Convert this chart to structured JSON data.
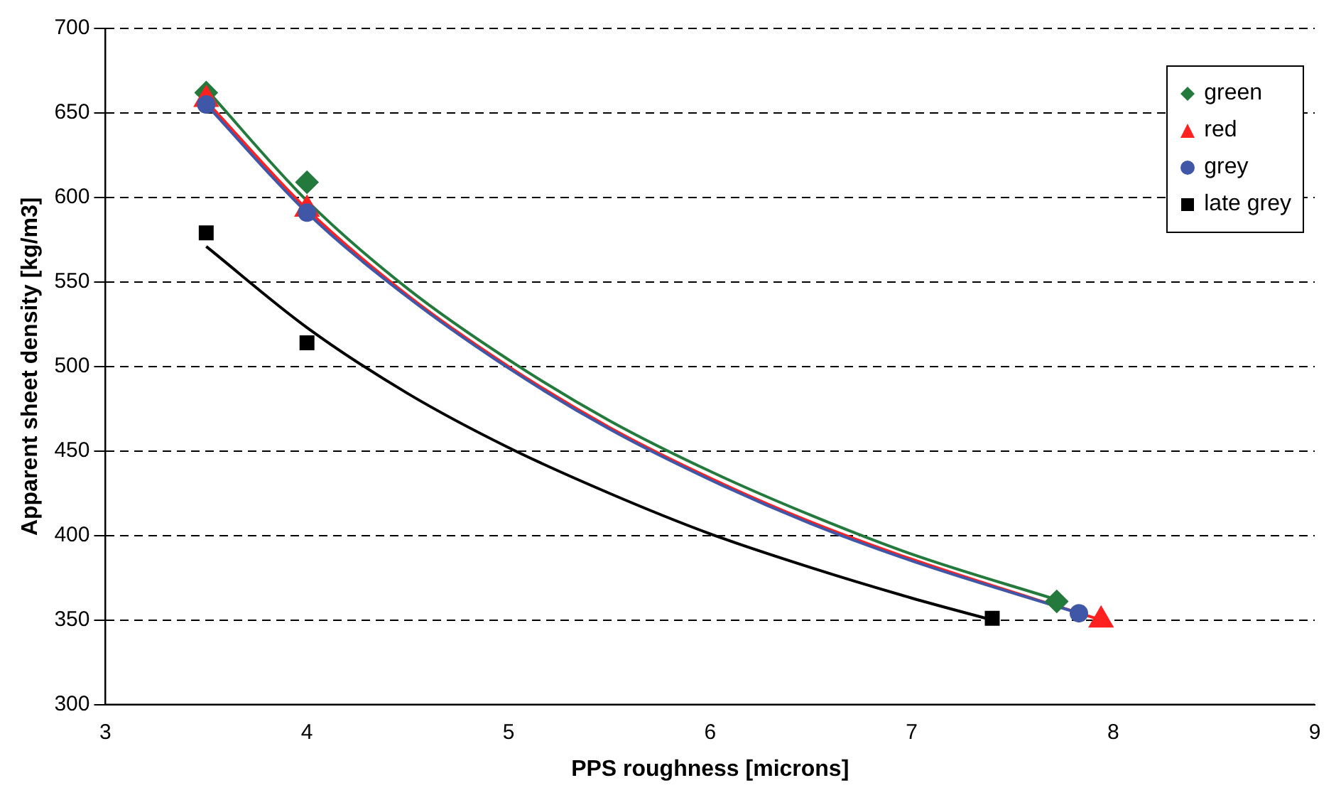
{
  "chart_data": {
    "type": "scatter",
    "xlabel": "PPS roughness [microns]",
    "ylabel": "Apparent sheet density [kg/m3]",
    "xlim": [
      3,
      9
    ],
    "xticks": [
      3,
      4,
      5,
      6,
      7,
      8,
      9
    ],
    "ylim": [
      300,
      700
    ],
    "yticks": [
      300,
      350,
      400,
      450,
      500,
      550,
      600,
      650,
      700
    ],
    "grid": "y",
    "legend": "top right",
    "series": [
      {
        "name": "green",
        "type": "scatter",
        "marker": "diamond",
        "color": "#237a3c",
        "x": [
          3.5,
          4,
          7.72
        ],
        "values": [
          662,
          609,
          361
        ]
      },
      {
        "name": "red",
        "type": "scatter",
        "marker": "triangle",
        "color": "#ff2020",
        "x": [
          3.5,
          4,
          7.94
        ],
        "values": [
          658,
          593,
          350
        ]
      },
      {
        "name": "grey",
        "type": "scatter",
        "marker": "circle",
        "color": "#3f57a6",
        "x": [
          3.5,
          4,
          7.83
        ],
        "values": [
          655,
          591,
          354
        ]
      },
      {
        "name": "late grey",
        "type": "scatter",
        "marker": "square",
        "color": "#000000",
        "x": [
          3.5,
          4,
          7.4
        ],
        "values": [
          579,
          514,
          351
        ]
      },
      {
        "type": "line",
        "marker": "none",
        "color": "#237a3c",
        "x": [
          3.5,
          4,
          4.5,
          5,
          5.5,
          6,
          6.5,
          7,
          7.72
        ],
        "values": [
          664,
          598,
          546,
          504,
          468,
          438,
          412,
          389,
          362
        ]
      },
      {
        "type": "line",
        "marker": "none",
        "color": "#3f57a6",
        "x": [
          3.5,
          4,
          4.5,
          5,
          5.5,
          6,
          6.5,
          7,
          7.83
        ],
        "values": [
          655,
          591,
          541,
          499,
          463,
          433,
          407,
          385,
          354
        ]
      },
      {
        "type": "line",
        "marker": "none",
        "color": "#ff2020",
        "x": [
          3.5,
          4,
          4.5,
          5,
          5.5,
          6,
          6.5,
          7,
          7.94
        ],
        "values": [
          657,
          593,
          542,
          500,
          464,
          434,
          408,
          386,
          350
        ]
      },
      {
        "type": "line",
        "marker": "none",
        "color": "#000000",
        "x": [
          3.5,
          4,
          4.5,
          5,
          5.5,
          6,
          6.5,
          7,
          7.4
        ],
        "values": [
          571,
          523,
          484,
          452,
          425,
          401,
          381,
          363,
          350
        ]
      }
    ]
  }
}
